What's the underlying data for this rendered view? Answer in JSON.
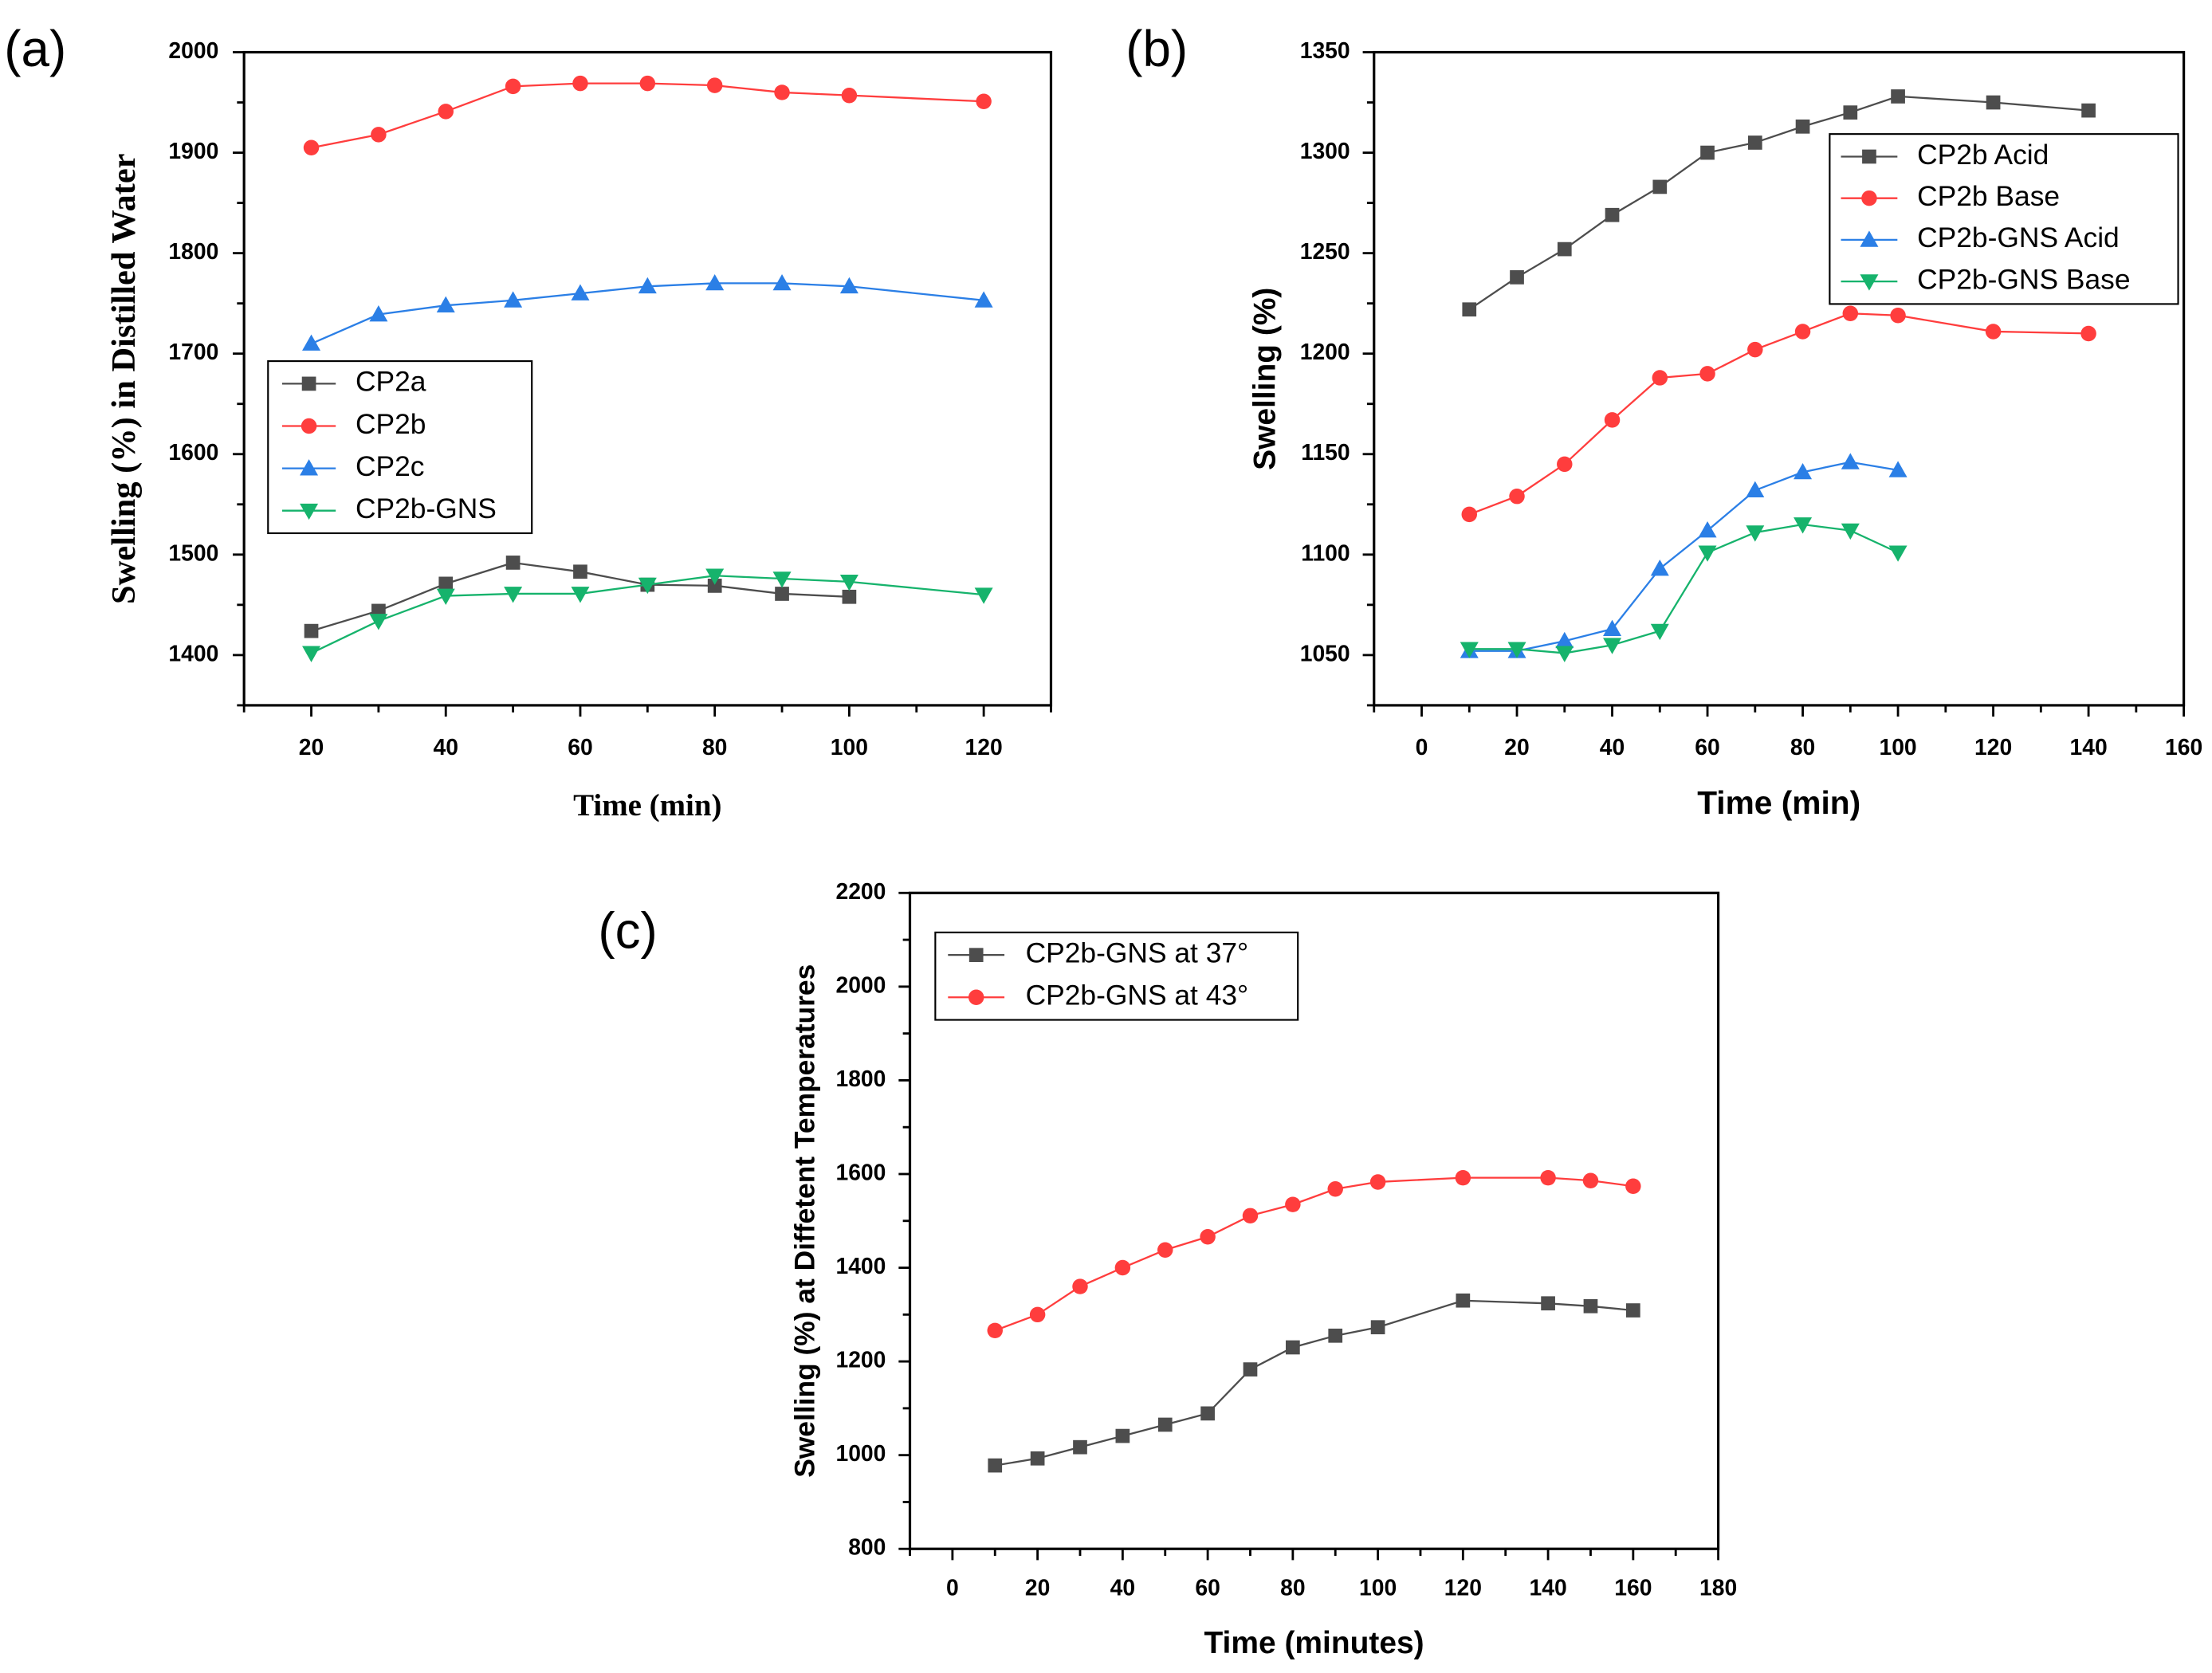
{
  "chart_data": [
    {
      "panel_label": "(a)",
      "type": "line",
      "xlabel": "Time (min)",
      "ylabel": "Swelling (%) in Distilled Water",
      "xlim": [
        10,
        130
      ],
      "ylim": [
        1350,
        2000
      ],
      "x_ticks": [
        20,
        40,
        60,
        80,
        100,
        120
      ],
      "y_ticks": [
        1400,
        1500,
        1600,
        1700,
        1800,
        1900,
        2000
      ],
      "grid": false,
      "legend": "center-left",
      "series": [
        {
          "name": "CP2a",
          "color": "#4d4d4d",
          "marker": "square",
          "x": [
            20,
            30,
            40,
            50,
            60,
            70,
            80,
            90,
            100
          ],
          "y": [
            1424,
            1444,
            1471,
            1492,
            1483,
            1470,
            1469,
            1461,
            1458
          ]
        },
        {
          "name": "CP2b",
          "color": "#ff3d3d",
          "marker": "circle",
          "x": [
            20,
            30,
            40,
            50,
            60,
            70,
            80,
            90,
            100,
            120
          ],
          "y": [
            1905,
            1918,
            1941,
            1966,
            1969,
            1969,
            1967,
            1960,
            1957,
            1951
          ]
        },
        {
          "name": "CP2c",
          "color": "#2b7fe6",
          "marker": "triangle-up",
          "x": [
            20,
            30,
            40,
            50,
            60,
            70,
            80,
            90,
            100,
            120
          ],
          "y": [
            1710,
            1739,
            1748,
            1753,
            1760,
            1767,
            1770,
            1770,
            1767,
            1753
          ]
        },
        {
          "name": "CP2b-GNS",
          "color": "#16b36c",
          "marker": "triangle-down",
          "x": [
            20,
            30,
            40,
            50,
            60,
            70,
            80,
            90,
            100,
            120
          ],
          "y": [
            1402,
            1434,
            1459,
            1461,
            1461,
            1470,
            1479,
            1476,
            1473,
            1460
          ]
        }
      ]
    },
    {
      "panel_label": "(b)",
      "type": "line",
      "xlabel": "Time (min)",
      "ylabel": "Swelling (%)",
      "xlim": [
        -10,
        160
      ],
      "ylim": [
        1025,
        1350
      ],
      "x_ticks": [
        0,
        20,
        40,
        60,
        80,
        100,
        120,
        140,
        160
      ],
      "y_ticks": [
        1050,
        1100,
        1150,
        1200,
        1250,
        1300,
        1350
      ],
      "grid": false,
      "legend": "top-right",
      "series": [
        {
          "name": "CP2b Acid",
          "color": "#4d4d4d",
          "marker": "square",
          "x": [
            10,
            20,
            30,
            40,
            50,
            60,
            70,
            80,
            90,
            100,
            120,
            140
          ],
          "y": [
            1222,
            1238,
            1252,
            1269,
            1283,
            1300,
            1305,
            1313,
            1320,
            1328,
            1325,
            1321
          ]
        },
        {
          "name": "CP2b Base",
          "color": "#ff3d3d",
          "marker": "circle",
          "x": [
            10,
            20,
            30,
            40,
            50,
            60,
            70,
            80,
            90,
            100,
            120,
            140
          ],
          "y": [
            1120,
            1129,
            1145,
            1167,
            1188,
            1190,
            1202,
            1211,
            1220,
            1219,
            1211,
            1210
          ]
        },
        {
          "name": "CP2b-GNS Acid",
          "color": "#2b7fe6",
          "marker": "triangle-up",
          "x": [
            10,
            20,
            30,
            40,
            50,
            60,
            70,
            80,
            90,
            100
          ],
          "y": [
            1052,
            1052,
            1057,
            1063,
            1093,
            1112,
            1132,
            1141,
            1146,
            1142
          ]
        },
        {
          "name": "CP2b-GNS Base",
          "color": "#16b36c",
          "marker": "triangle-down",
          "x": [
            10,
            20,
            30,
            40,
            50,
            60,
            70,
            80,
            90,
            100
          ],
          "y": [
            1053,
            1053,
            1051,
            1055,
            1062,
            1101,
            1111,
            1115,
            1112,
            1101
          ]
        }
      ]
    },
    {
      "panel_label": "(c)",
      "type": "line",
      "xlabel": "Time (minutes)",
      "ylabel": "Swelling (%) at Diffetent Temperatures",
      "xlim": [
        -10,
        180
      ],
      "ylim": [
        800,
        2200
      ],
      "x_ticks": [
        0,
        20,
        40,
        60,
        80,
        100,
        120,
        140,
        160,
        180
      ],
      "y_ticks": [
        800,
        1000,
        1200,
        1400,
        1600,
        1800,
        2000,
        2200
      ],
      "grid": false,
      "legend": "top-left",
      "series": [
        {
          "name": "CP2b-GNS at 37°",
          "color": "#4d4d4d",
          "marker": "square",
          "x": [
            10,
            20,
            30,
            40,
            50,
            60,
            70,
            80,
            90,
            100,
            120,
            140,
            150,
            160
          ],
          "y": [
            978,
            993,
            1017,
            1041,
            1065,
            1089,
            1183,
            1230,
            1255,
            1273,
            1330,
            1324,
            1318,
            1309
          ]
        },
        {
          "name": "CP2b-GNS at 43°",
          "color": "#ff3d3d",
          "marker": "circle",
          "x": [
            10,
            20,
            30,
            40,
            50,
            60,
            70,
            80,
            90,
            100,
            120,
            140,
            150,
            160
          ],
          "y": [
            1266,
            1300,
            1360,
            1400,
            1438,
            1466,
            1511,
            1535,
            1568,
            1583,
            1592,
            1592,
            1586,
            1574
          ]
        }
      ]
    }
  ]
}
